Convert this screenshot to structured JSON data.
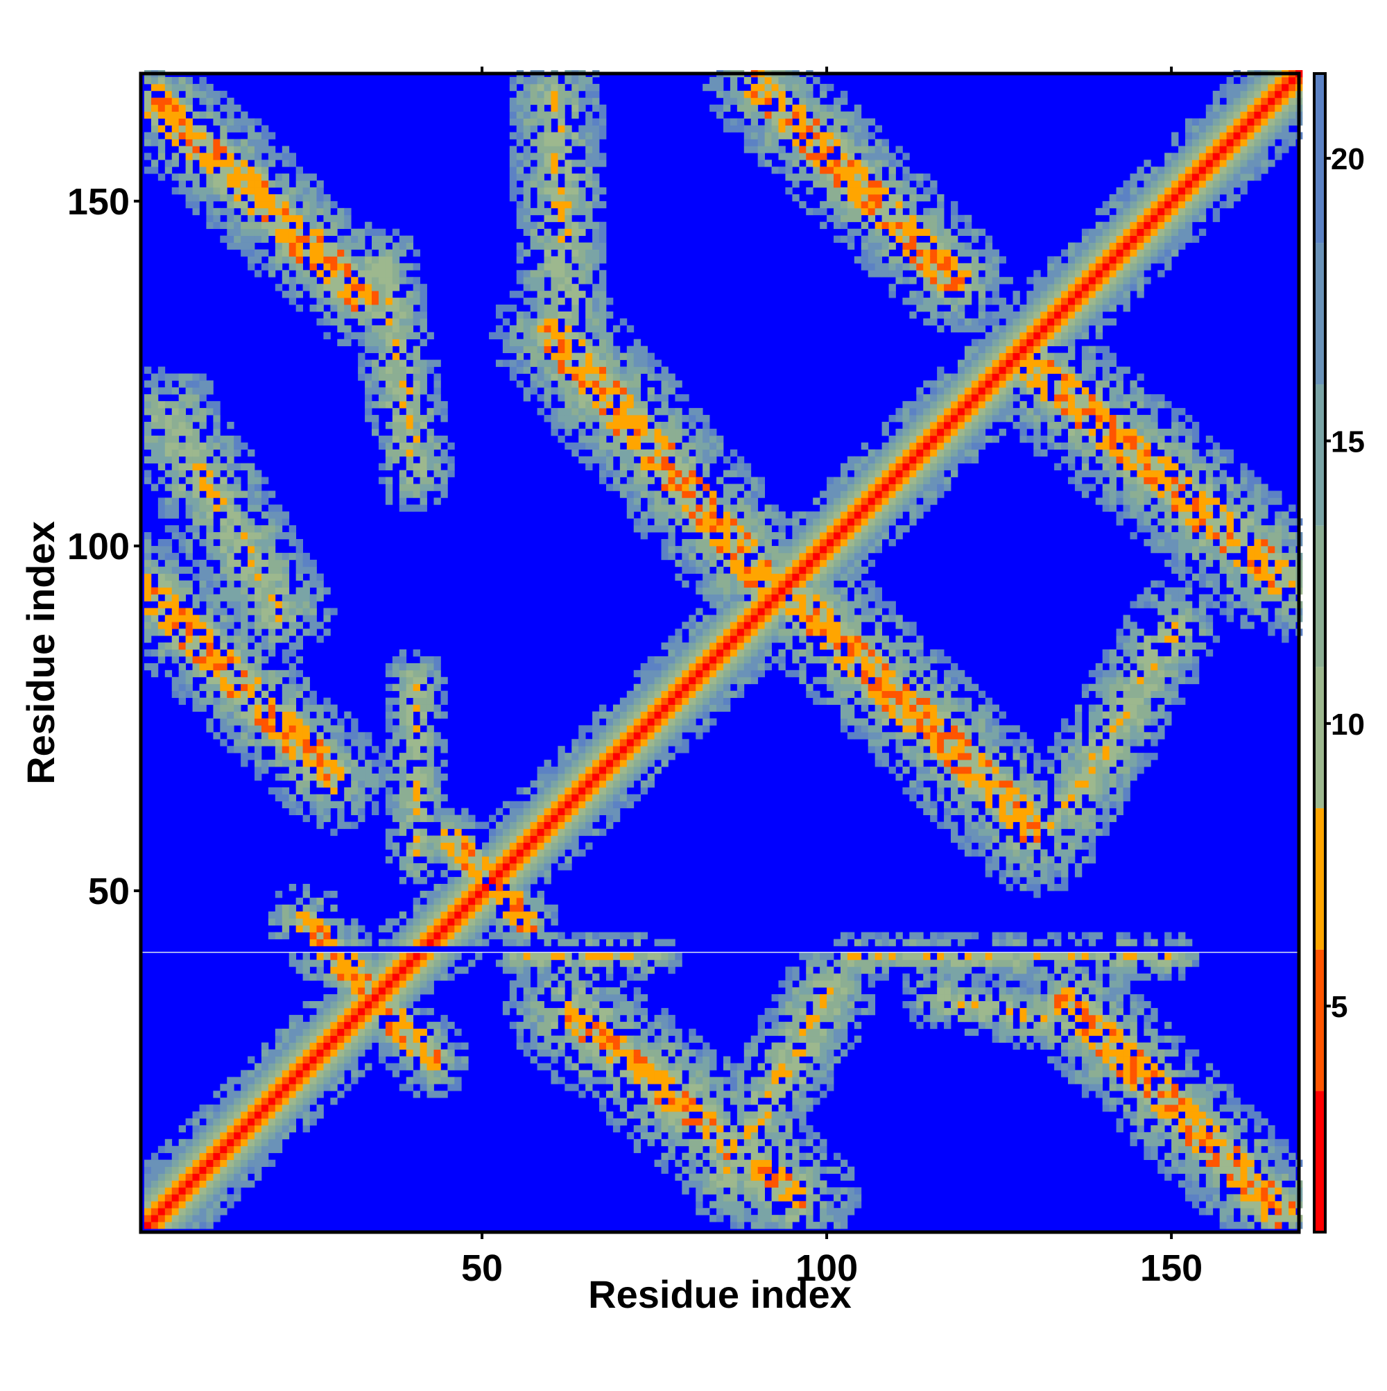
{
  "chart_data": {
    "type": "heatmap",
    "title": "",
    "xlabel": "Residue index",
    "ylabel": "Residue index",
    "xlim": [
      1,
      168
    ],
    "ylim": [
      1,
      168
    ],
    "x_ticks": [
      50,
      100,
      150
    ],
    "y_ticks": [
      50,
      100,
      150
    ],
    "colorbar": {
      "range": [
        1,
        21.5
      ],
      "ticks": [
        5,
        10,
        15,
        20
      ],
      "bands": [
        {
          "from": 1,
          "to": 3.5,
          "color": "#ff0000"
        },
        {
          "from": 3.5,
          "to": 6,
          "color": "#ff5500"
        },
        {
          "from": 6,
          "to": 8.5,
          "color": "#ffa500"
        },
        {
          "from": 8.5,
          "to": 11,
          "color": "#9db88e"
        },
        {
          "from": 11,
          "to": 13.5,
          "color": "#8cae93"
        },
        {
          "from": 13.5,
          "to": 16,
          "color": "#7aa4a6"
        },
        {
          "from": 16,
          "to": 18.5,
          "color": "#6a92b8"
        },
        {
          "from": 18.5,
          "to": 21.5,
          "color": "#5c82c4"
        }
      ]
    },
    "background_color": "#0000ff",
    "gap_row": 41,
    "contact_bands": [
      {
        "x1": 1,
        "y1": 1,
        "x2": 168,
        "y2": 168,
        "w": 6,
        "core": 1.6
      },
      {
        "x1": 2,
        "y1": 164,
        "x2": 32,
        "y2": 136,
        "w": 7,
        "core": 2.5
      },
      {
        "x1": 1,
        "y1": 93,
        "x2": 28,
        "y2": 66,
        "w": 7,
        "core": 2.5
      },
      {
        "x1": 24,
        "y1": 45,
        "x2": 42,
        "y2": 25,
        "w": 5,
        "core": 2
      },
      {
        "x1": 45,
        "y1": 57,
        "x2": 56,
        "y2": 45,
        "w": 4,
        "core": 2
      },
      {
        "x1": 60,
        "y1": 130,
        "x2": 90,
        "y2": 95,
        "w": 8,
        "core": 2.5
      },
      {
        "x1": 95,
        "y1": 92,
        "x2": 130,
        "y2": 58,
        "w": 8,
        "core": 2.5
      },
      {
        "x1": 90,
        "y1": 166,
        "x2": 118,
        "y2": 138,
        "w": 7,
        "core": 2.5
      },
      {
        "x1": 130,
        "y1": 125,
        "x2": 165,
        "y2": 95,
        "w": 8,
        "core": 2.5
      },
      {
        "x1": 62,
        "y1": 32,
        "x2": 95,
        "y2": 5,
        "w": 8,
        "core": 2
      },
      {
        "x1": 135,
        "y1": 33,
        "x2": 165,
        "y2": 3,
        "w": 7,
        "core": 2.5
      },
      {
        "x1": 60,
        "y1": 165,
        "x2": 62,
        "y2": 130,
        "w": 6,
        "core": 0
      },
      {
        "x1": 4,
        "y1": 118,
        "x2": 20,
        "y2": 90,
        "w": 7,
        "core": 0
      },
      {
        "x1": 35,
        "y1": 140,
        "x2": 40,
        "y2": 110,
        "w": 5,
        "core": 0
      },
      {
        "x1": 40,
        "y1": 80,
        "x2": 40,
        "y2": 55,
        "w": 4,
        "core": 0
      },
      {
        "x1": 150,
        "y1": 88,
        "x2": 135,
        "y2": 62,
        "w": 6,
        "core": 0
      },
      {
        "x1": 103,
        "y1": 40,
        "x2": 150,
        "y2": 40,
        "w": 3,
        "core": 0
      },
      {
        "x1": 55,
        "y1": 40,
        "x2": 75,
        "y2": 40,
        "w": 3,
        "core": 0
      },
      {
        "x1": 100,
        "y1": 35,
        "x2": 85,
        "y2": 8,
        "w": 6,
        "core": 0
      },
      {
        "x1": 115,
        "y1": 34,
        "x2": 135,
        "y2": 30,
        "w": 4,
        "core": 0
      }
    ]
  }
}
